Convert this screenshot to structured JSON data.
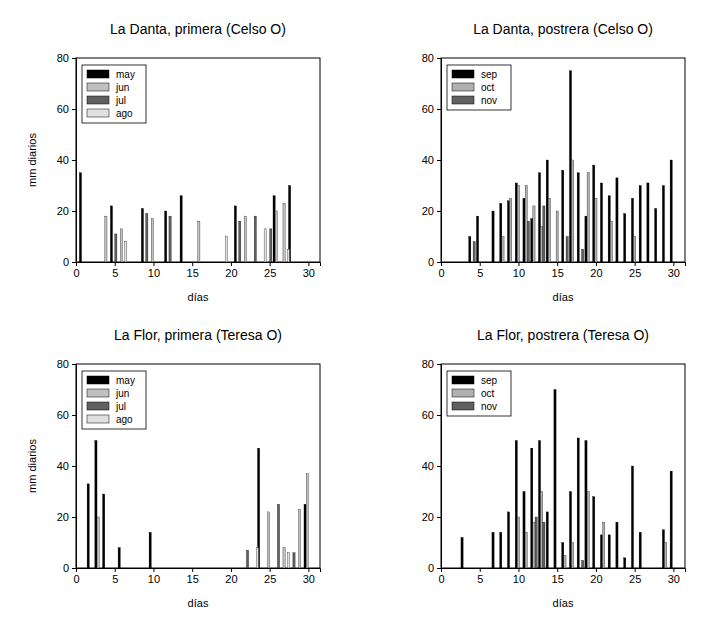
{
  "chart_data": [
    {
      "type": "bar",
      "title": "La Danta, primera (Celso O)",
      "x_label": "días",
      "y_label": "mm diarios",
      "x": [
        1,
        2,
        3,
        4,
        5,
        6,
        7,
        8,
        9,
        10,
        11,
        12,
        13,
        14,
        15,
        16,
        17,
        18,
        19,
        20,
        21,
        22,
        23,
        24,
        25,
        26,
        27,
        28,
        29,
        30
      ],
      "series": [
        {
          "name": "may",
          "color": "#000000",
          "values": [
            35,
            null,
            null,
            null,
            22,
            null,
            null,
            null,
            21,
            null,
            null,
            20,
            null,
            26,
            null,
            null,
            null,
            null,
            null,
            null,
            22,
            null,
            null,
            null,
            null,
            26,
            null,
            30,
            null,
            null
          ]
        },
        {
          "name": "jun",
          "color": "#c0c0c0",
          "values": [
            null,
            null,
            null,
            18,
            null,
            13,
            null,
            null,
            null,
            17,
            null,
            null,
            null,
            null,
            null,
            16,
            null,
            null,
            null,
            null,
            null,
            18,
            null,
            null,
            null,
            20,
            23,
            null,
            null,
            null
          ]
        },
        {
          "name": "jul",
          "color": "#606060",
          "values": [
            null,
            null,
            null,
            null,
            11,
            null,
            null,
            null,
            19,
            null,
            null,
            18,
            null,
            null,
            null,
            null,
            null,
            null,
            null,
            null,
            16,
            null,
            18,
            null,
            13,
            null,
            null,
            null,
            null,
            null
          ]
        },
        {
          "name": "ago",
          "color": "#e0e0e0",
          "values": [
            null,
            null,
            null,
            null,
            null,
            8,
            null,
            null,
            null,
            null,
            null,
            null,
            null,
            null,
            null,
            null,
            null,
            null,
            10,
            null,
            null,
            null,
            null,
            13,
            null,
            null,
            5,
            null,
            null,
            null
          ]
        }
      ],
      "xlim": [
        0,
        31.5
      ],
      "xticks": [
        0,
        5,
        10,
        15,
        20,
        25,
        30
      ],
      "ylim": [
        0,
        80
      ],
      "yticks": [
        0,
        20,
        40,
        60,
        80
      ],
      "legend": "upper left"
    },
    {
      "type": "bar",
      "title": "La Danta, postrera (Celso O)",
      "x_label": "días",
      "x": [
        1,
        2,
        3,
        4,
        5,
        6,
        7,
        8,
        9,
        10,
        11,
        12,
        13,
        14,
        15,
        16,
        17,
        18,
        19,
        20,
        21,
        22,
        23,
        24,
        25,
        26,
        27,
        28,
        29,
        30
      ],
      "series": [
        {
          "name": "sep",
          "color": "#000000",
          "values": [
            null,
            null,
            null,
            10,
            18,
            null,
            20,
            23,
            24,
            31,
            25,
            17,
            35,
            40,
            null,
            36,
            75,
            35,
            18,
            38,
            31,
            26,
            33,
            19,
            25,
            30,
            31,
            21,
            30,
            40
          ]
        },
        {
          "name": "oct",
          "color": "#b0b0b0",
          "values": [
            null,
            null,
            null,
            null,
            null,
            null,
            null,
            10,
            25,
            30,
            30,
            22,
            14,
            25,
            20,
            null,
            40,
            null,
            35,
            25,
            null,
            16,
            null,
            null,
            10,
            null,
            null,
            null,
            null,
            null
          ]
        },
        {
          "name": "nov",
          "color": "#606060",
          "values": [
            null,
            null,
            null,
            8,
            null,
            null,
            null,
            null,
            null,
            null,
            16,
            null,
            22,
            null,
            null,
            10,
            null,
            5,
            null,
            null,
            null,
            null,
            null,
            null,
            null,
            null,
            null,
            null,
            null,
            null
          ]
        }
      ],
      "xlim": [
        0,
        31.5
      ],
      "xticks": [
        0,
        5,
        10,
        15,
        20,
        25,
        30
      ],
      "ylim": [
        0,
        80
      ],
      "yticks": [
        0,
        20,
        40,
        60,
        80
      ],
      "legend": "upper left"
    },
    {
      "type": "bar",
      "title": "La Flor, primera (Teresa O)",
      "x_label": "días",
      "y_label": "mm diarios",
      "x": [
        1,
        2,
        3,
        4,
        5,
        6,
        7,
        8,
        9,
        10,
        11,
        12,
        13,
        14,
        15,
        16,
        17,
        18,
        19,
        20,
        21,
        22,
        23,
        24,
        25,
        26,
        27,
        28,
        29,
        30
      ],
      "series": [
        {
          "name": "may",
          "color": "#000000",
          "values": [
            null,
            33,
            50,
            29,
            null,
            8,
            null,
            null,
            null,
            14,
            null,
            null,
            null,
            null,
            null,
            null,
            null,
            null,
            null,
            null,
            null,
            null,
            null,
            47,
            null,
            null,
            null,
            null,
            null,
            25
          ]
        },
        {
          "name": "jun",
          "color": "#c0c0c0",
          "values": [
            null,
            null,
            20,
            null,
            null,
            null,
            null,
            null,
            null,
            null,
            null,
            null,
            null,
            null,
            null,
            null,
            null,
            null,
            null,
            null,
            null,
            null,
            null,
            null,
            22,
            null,
            8,
            null,
            23,
            37
          ]
        },
        {
          "name": "jul",
          "color": "#606060",
          "values": [
            null,
            null,
            null,
            null,
            null,
            null,
            null,
            null,
            null,
            null,
            null,
            null,
            null,
            null,
            null,
            null,
            null,
            null,
            null,
            null,
            null,
            7,
            null,
            null,
            null,
            25,
            null,
            6,
            null,
            null
          ]
        },
        {
          "name": "ago",
          "color": "#e0e0e0",
          "values": [
            null,
            null,
            null,
            null,
            null,
            null,
            null,
            null,
            null,
            null,
            null,
            null,
            null,
            null,
            null,
            null,
            null,
            null,
            null,
            null,
            null,
            null,
            8,
            null,
            null,
            null,
            6,
            null,
            null,
            null
          ]
        }
      ],
      "xlim": [
        0,
        31.5
      ],
      "xticks": [
        0,
        5,
        10,
        15,
        20,
        25,
        30
      ],
      "ylim": [
        0,
        80
      ],
      "yticks": [
        0,
        20,
        40,
        60,
        80
      ],
      "legend": "upper left"
    },
    {
      "type": "bar",
      "title": "La Flor, postrera (Teresa O)",
      "x_label": "días",
      "x": [
        1,
        2,
        3,
        4,
        5,
        6,
        7,
        8,
        9,
        10,
        11,
        12,
        13,
        14,
        15,
        16,
        17,
        18,
        19,
        20,
        21,
        22,
        23,
        24,
        25,
        26,
        27,
        28,
        29,
        30
      ],
      "series": [
        {
          "name": "sep",
          "color": "#000000",
          "values": [
            null,
            null,
            12,
            null,
            null,
            null,
            14,
            14,
            22,
            50,
            30,
            47,
            50,
            22,
            70,
            10,
            30,
            51,
            50,
            28,
            13,
            13,
            18,
            4,
            40,
            14,
            null,
            null,
            15,
            38
          ]
        },
        {
          "name": "oct",
          "color": "#b0b0b0",
          "values": [
            null,
            null,
            null,
            null,
            null,
            null,
            null,
            null,
            null,
            20,
            14,
            18,
            30,
            null,
            null,
            5,
            10,
            null,
            30,
            null,
            18,
            null,
            null,
            null,
            null,
            null,
            null,
            null,
            10,
            null
          ]
        },
        {
          "name": "nov",
          "color": "#606060",
          "values": [
            null,
            null,
            null,
            null,
            null,
            null,
            null,
            null,
            null,
            null,
            null,
            20,
            18,
            null,
            null,
            null,
            null,
            3,
            null,
            null,
            null,
            null,
            null,
            null,
            null,
            null,
            null,
            null,
            null,
            null
          ]
        }
      ],
      "xlim": [
        0,
        31.5
      ],
      "xticks": [
        0,
        5,
        10,
        15,
        20,
        25,
        30
      ],
      "ylim": [
        0,
        80
      ],
      "yticks": [
        0,
        20,
        40,
        60,
        80
      ],
      "legend": "upper left"
    }
  ]
}
